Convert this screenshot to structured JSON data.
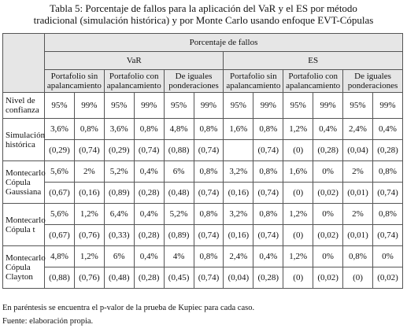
{
  "caption": "Tabla 5: Porcentaje de fallos para la aplicación del VaR y el ES por método tradicional (simulación histórica) y por Monte Carlo usando enfoque EVT-Cópulas",
  "table": {
    "header": "Porcentaje de fallos",
    "measures": [
      "VaR",
      "ES"
    ],
    "portfolios": [
      "Portafolio sin apalancamiento",
      "Portafolio con apalancamiento",
      "De iguales ponderaciones"
    ],
    "confidence_label": "Nivel de confianza",
    "confidence": [
      "95%",
      "99%"
    ],
    "rows": [
      {
        "label": "Simulación histórica",
        "failures": [
          "3,6%",
          "0,8%",
          "3,6%",
          "0,8%",
          "4,8%",
          "0,8%",
          "1,6%",
          "0,8%",
          "1,2%",
          "0,4%",
          "2,4%",
          "0,4%"
        ],
        "p_values": [
          "(0,29)",
          "(0,74)",
          "(0,29)",
          "(0,74)",
          "(0,88)",
          "(0,74)",
          null,
          "(0,74)",
          "(0)",
          "(0,28)",
          "(0,04)",
          "(0,28)"
        ]
      },
      {
        "label": "Montecarlo Cópula Gaussiana",
        "failures": [
          "5,6%",
          "2%",
          "5,2%",
          "0,4%",
          "6%",
          "0,8%",
          "3,2%",
          "0,8%",
          "1,6%",
          "0%",
          "2%",
          "0,8%"
        ],
        "p_values": [
          "(0,67)",
          "(0,16)",
          "(0,89)",
          "(0,28)",
          "(0,48)",
          "(0,74)",
          "(0,16)",
          "(0,74)",
          "(0)",
          "(0,02)",
          "(0,01)",
          "(0,74)"
        ]
      },
      {
        "label": "Montecarlo Cópula t",
        "failures": [
          "5,6%",
          "1,2%",
          "6,4%",
          "0,4%",
          "5,2%",
          "0,8%",
          "3,2%",
          "0,8%",
          "1,2%",
          "0%",
          "2%",
          "0,8%"
        ],
        "p_values": [
          "(0,67)",
          "(0,76)",
          "(0,33)",
          "(0,28)",
          "(0,89)",
          "(0,74)",
          "(0,16)",
          "(0,74)",
          "(0)",
          "(0,02)",
          "(0,01)",
          "(0,74)"
        ]
      },
      {
        "label": "Montecarlo Cópula Clayton",
        "failures": [
          "4,8%",
          "1,2%",
          "6%",
          "0,4%",
          "4%",
          "0,8%",
          "2,4%",
          "0,4%",
          "1,2%",
          "0%",
          "0,8%",
          "0%"
        ],
        "p_values": [
          "(0,88)",
          "(0,76)",
          "(0,48)",
          "(0,28)",
          "(0,45)",
          "(0,74)",
          "(0,04)",
          "(0,28)",
          "(0)",
          "(0,02)",
          "(0)",
          "(0,02)"
        ]
      }
    ]
  },
  "notes": [
    "En paréntesis se encuentra el p-valor de la prueba de Kupiec para cada caso.",
    "Fuente: elaboración propia."
  ]
}
